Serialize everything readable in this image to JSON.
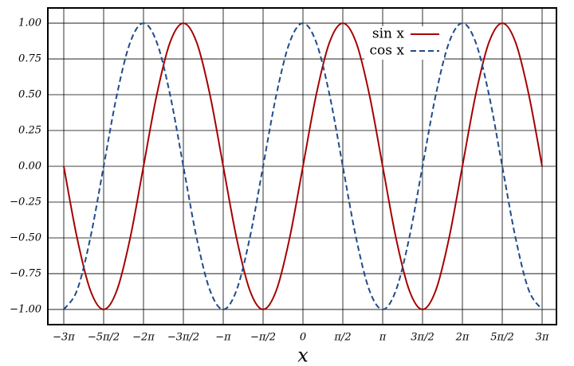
{
  "chart_data": {
    "type": "line",
    "x_label": "x",
    "x": [
      -9.4248,
      -8.9012,
      -8.3776,
      -7.854,
      -7.3304,
      -6.8068,
      -6.2832,
      -5.7596,
      -5.236,
      -4.7124,
      -4.1888,
      -3.6652,
      -3.1416,
      -2.618,
      -2.0944,
      -1.5708,
      -1.0472,
      -0.5236,
      0,
      0.5236,
      1.0472,
      1.5708,
      2.0944,
      2.618,
      3.1416,
      3.6652,
      4.1888,
      4.7124,
      5.236,
      5.7596,
      6.2832,
      6.8068,
      7.3304,
      7.854,
      8.3776,
      8.9012,
      9.4248
    ],
    "series": [
      {
        "name": "sin x",
        "color": "#a50000",
        "dash": false,
        "values": [
          0,
          -0.5,
          -0.866,
          -1,
          -0.866,
          -0.5,
          0,
          0.5,
          0.866,
          1,
          0.866,
          0.5,
          0,
          -0.5,
          -0.866,
          -1,
          -0.866,
          -0.5,
          0,
          0.5,
          0.866,
          1,
          0.866,
          0.5,
          0,
          -0.5,
          -0.866,
          -1,
          -0.866,
          -0.5,
          0,
          0.5,
          0.866,
          1,
          0.866,
          0.5,
          0
        ]
      },
      {
        "name": "cos x",
        "color": "#1f4c8a",
        "dash": true,
        "values": [
          -1,
          -0.866,
          -0.5,
          0,
          0.5,
          0.866,
          1,
          0.866,
          0.5,
          0,
          -0.5,
          -0.866,
          -1,
          -0.866,
          -0.5,
          0,
          0.5,
          0.866,
          1,
          0.866,
          0.5,
          0,
          -0.5,
          -0.866,
          -1,
          -0.866,
          -0.5,
          0,
          0.5,
          0.866,
          1,
          0.866,
          0.5,
          0,
          -0.5,
          -0.866,
          -1
        ]
      }
    ],
    "xlim": [
      -10.053,
      9.99
    ],
    "ylim": [
      -1.106,
      1.106
    ],
    "xticks": [
      {
        "value": -9.4248,
        "label": "−3π"
      },
      {
        "value": -7.854,
        "label": "−5π/2"
      },
      {
        "value": -6.2832,
        "label": "−2π"
      },
      {
        "value": -4.7124,
        "label": "−3π/2"
      },
      {
        "value": -3.1416,
        "label": "−π"
      },
      {
        "value": -1.5708,
        "label": "−π/2"
      },
      0,
      {
        "value": 1.5708,
        "label": "π/2"
      },
      {
        "value": 3.1416,
        "label": "π"
      },
      {
        "value": 4.7124,
        "label": "3π/2"
      },
      {
        "value": 6.2832,
        "label": "2π"
      },
      {
        "value": 7.854,
        "label": "5π/2"
      },
      {
        "value": 9.4248,
        "label": "3π"
      }
    ],
    "yticks": [
      {
        "value": 1,
        "label": "1.00"
      },
      {
        "value": 0.75,
        "label": "0.75"
      },
      {
        "value": 0.5,
        "label": "0.50"
      },
      {
        "value": 0.25,
        "label": "0.25"
      },
      {
        "value": 0,
        "label": "0.00"
      },
      {
        "value": -0.25,
        "label": "−0.25"
      },
      {
        "value": -0.5,
        "label": "−0.50"
      },
      {
        "value": -0.75,
        "label": "−0.75"
      },
      {
        "value": -1,
        "label": "−1.00"
      }
    ],
    "grid": true,
    "legend": "upper right"
  }
}
